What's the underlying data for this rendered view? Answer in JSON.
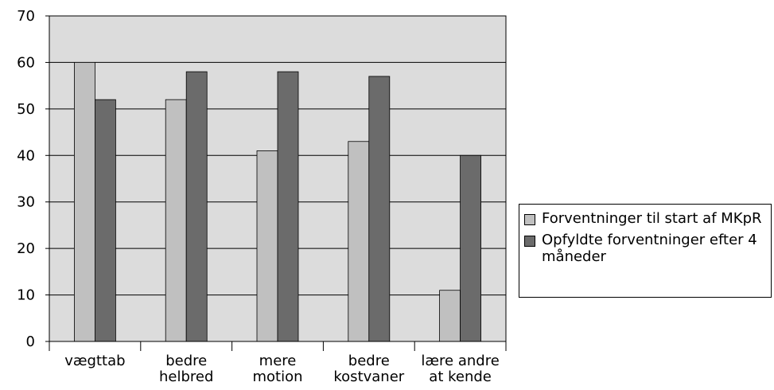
{
  "chart_data": {
    "type": "bar",
    "categories": [
      "vægttab",
      "bedre\nhelbred",
      "mere\nmotion",
      "bedre\nkostvaner",
      "lære andre\nat kende"
    ],
    "series": [
      {
        "name": "Forventninger til start af MKpR",
        "color": "#c0c0c0",
        "values": [
          60,
          52,
          41,
          43,
          11
        ]
      },
      {
        "name": "Opfyldte forventninger efter 4 måneder",
        "color": "#6b6b6b",
        "values": [
          52,
          58,
          58,
          57,
          40
        ]
      }
    ],
    "ylim": [
      0,
      70
    ],
    "yticks": [
      0,
      10,
      20,
      30,
      40,
      50,
      60,
      70
    ],
    "grid": true,
    "legend": "right"
  }
}
